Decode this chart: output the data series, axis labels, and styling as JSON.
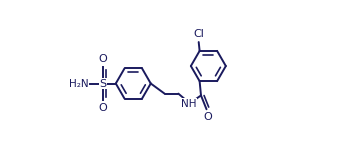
{
  "line_color": "#1a1a5e",
  "bg_color": "#ffffff",
  "line_width": 1.4,
  "dbo": 0.022,
  "fs": 7.5,
  "figsize": [
    3.42,
    1.67
  ],
  "dpi": 100,
  "xlim": [
    0.0,
    1.0
  ],
  "ylim": [
    0.05,
    0.95
  ]
}
